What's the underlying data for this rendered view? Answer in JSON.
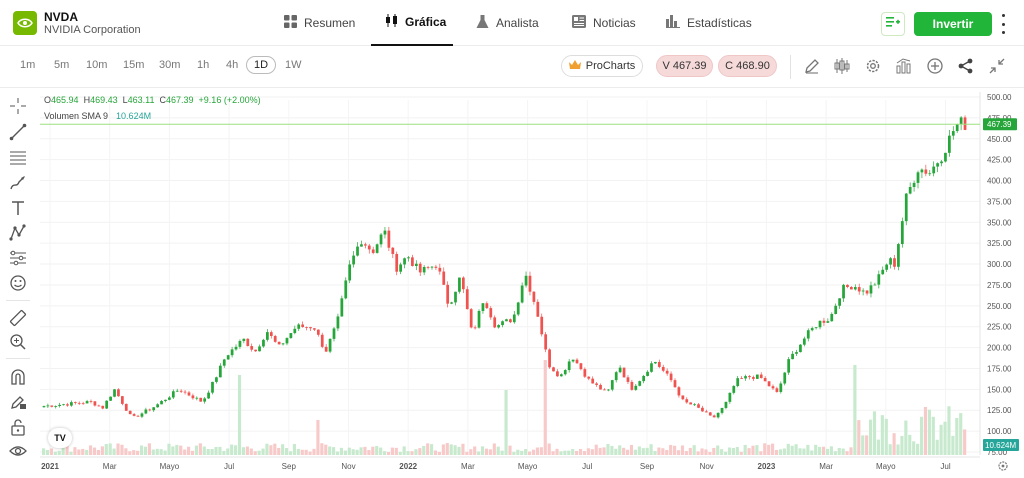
{
  "header": {
    "ticker": "NVDA",
    "company": "NVIDIA Corporation",
    "invest_label": "Invertir",
    "nav": [
      {
        "label": "Resumen",
        "icon": "grid-icon",
        "active": false
      },
      {
        "label": "Gráfica",
        "icon": "candles-icon",
        "active": true
      },
      {
        "label": "Analista",
        "icon": "flask-icon",
        "active": false
      },
      {
        "label": "Noticias",
        "icon": "news-icon",
        "active": false
      },
      {
        "label": "Estadísticas",
        "icon": "bars-icon",
        "active": false
      }
    ]
  },
  "toolbar": {
    "timeframes": [
      "1m",
      "5m",
      "10m",
      "15m",
      "30m",
      "1h",
      "4h",
      "1D",
      "1W"
    ],
    "active_timeframe": "1D",
    "prochart_label": "ProCharts",
    "sell_label": "V 467.39",
    "buy_label": "C 468.90"
  },
  "legend": {
    "o_label": "O",
    "o_value": "465.94",
    "h_label": "H",
    "h_value": "469.43",
    "l_label": "L",
    "l_value": "463.11",
    "c_label": "C",
    "c_value": "467.39",
    "change": "+9.16 (+2.00%)",
    "volume_label": "Volumen SMA 9",
    "volume_value": "10.624M"
  },
  "chart_data": {
    "type": "candlestick",
    "x_ticks": [
      "2021",
      "Mar",
      "Mayo",
      "Jul",
      "Sep",
      "Nov",
      "2022",
      "Mar",
      "Mayo",
      "Jul",
      "Sep",
      "Nov",
      "2023",
      "Mar",
      "Mayo",
      "Jul"
    ],
    "y_ticks": [
      "500.00",
      "475.00",
      "450.00",
      "425.00",
      "400.00",
      "375.00",
      "350.00",
      "325.00",
      "300.00",
      "275.00",
      "250.00",
      "225.00",
      "200.00",
      "175.00",
      "150.00",
      "125.00",
      "100.00",
      "75.00"
    ],
    "ylim": [
      75,
      500
    ],
    "last_price": "467.39",
    "last_price_value": 467.39,
    "volume_label": "10.624M",
    "price_path": [
      [
        0,
        130
      ],
      [
        8,
        135
      ],
      [
        10,
        128
      ],
      [
        12,
        150
      ],
      [
        15,
        115
      ],
      [
        19,
        130
      ],
      [
        23,
        150
      ],
      [
        27,
        135
      ],
      [
        29,
        160
      ],
      [
        31,
        190
      ],
      [
        34,
        210
      ],
      [
        36,
        195
      ],
      [
        38,
        220
      ],
      [
        40,
        200
      ],
      [
        43,
        225
      ],
      [
        46,
        225
      ],
      [
        48,
        195
      ],
      [
        50,
        230
      ],
      [
        52,
        295
      ],
      [
        54,
        330
      ],
      [
        56,
        315
      ],
      [
        58,
        340
      ],
      [
        60,
        295
      ],
      [
        62,
        310
      ],
      [
        64,
        290
      ],
      [
        67,
        300
      ],
      [
        69,
        250
      ],
      [
        71,
        285
      ],
      [
        73,
        215
      ],
      [
        75,
        260
      ],
      [
        77,
        225
      ],
      [
        80,
        235
      ],
      [
        82,
        290
      ],
      [
        84,
        245
      ],
      [
        86,
        180
      ],
      [
        88,
        165
      ],
      [
        90,
        190
      ],
      [
        93,
        160
      ],
      [
        96,
        145
      ],
      [
        98,
        180
      ],
      [
        100,
        150
      ],
      [
        102,
        165
      ],
      [
        104,
        185
      ],
      [
        107,
        160
      ],
      [
        109,
        135
      ],
      [
        111,
        130
      ],
      [
        114,
        115
      ],
      [
        116,
        130
      ],
      [
        118,
        160
      ],
      [
        120,
        165
      ],
      [
        122,
        165
      ],
      [
        125,
        145
      ],
      [
        127,
        185
      ],
      [
        130,
        215
      ],
      [
        132,
        230
      ],
      [
        134,
        235
      ],
      [
        136,
        270
      ],
      [
        138,
        275
      ],
      [
        140,
        265
      ],
      [
        142,
        280
      ],
      [
        144,
        305
      ],
      [
        145,
        300
      ],
      [
        147,
        380
      ],
      [
        149,
        415
      ],
      [
        151,
        410
      ],
      [
        153,
        430
      ],
      [
        155,
        460
      ],
      [
        156,
        470
      ],
      [
        157,
        467
      ]
    ]
  },
  "colors": {
    "up": "#26a63a",
    "down": "#ef5350",
    "accent": "#21b53a",
    "brand": "#76b900",
    "price_line": "#9ee082"
  }
}
